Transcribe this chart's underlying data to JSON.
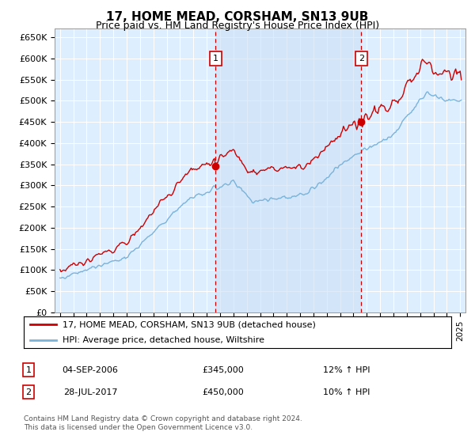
{
  "title": "17, HOME MEAD, CORSHAM, SN13 9UB",
  "subtitle": "Price paid vs. HM Land Registry's House Price Index (HPI)",
  "plot_bg_color": "#ddeeff",
  "ylim": [
    0,
    670000
  ],
  "yticks": [
    0,
    50000,
    100000,
    150000,
    200000,
    250000,
    300000,
    350000,
    400000,
    450000,
    500000,
    550000,
    600000,
    650000
  ],
  "ytick_labels": [
    "£0",
    "£50K",
    "£100K",
    "£150K",
    "£200K",
    "£250K",
    "£300K",
    "£350K",
    "£400K",
    "£450K",
    "£500K",
    "£550K",
    "£600K",
    "£650K"
  ],
  "sale1_date": 2006.67,
  "sale1_price": 345000,
  "sale2_date": 2017.58,
  "sale2_price": 450000,
  "legend_line1": "17, HOME MEAD, CORSHAM, SN13 9UB (detached house)",
  "legend_line2": "HPI: Average price, detached house, Wiltshire",
  "table_row1": [
    "1",
    "04-SEP-2006",
    "£345,000",
    "12% ↑ HPI"
  ],
  "table_row2": [
    "2",
    "28-JUL-2017",
    "£450,000",
    "10% ↑ HPI"
  ],
  "footer": "Contains HM Land Registry data © Crown copyright and database right 2024.\nThis data is licensed under the Open Government Licence v3.0.",
  "hpi_color": "#7ab3d9",
  "price_color": "#cc0000",
  "vline_color": "#cc0000",
  "xstart": 1995,
  "xend": 2025
}
